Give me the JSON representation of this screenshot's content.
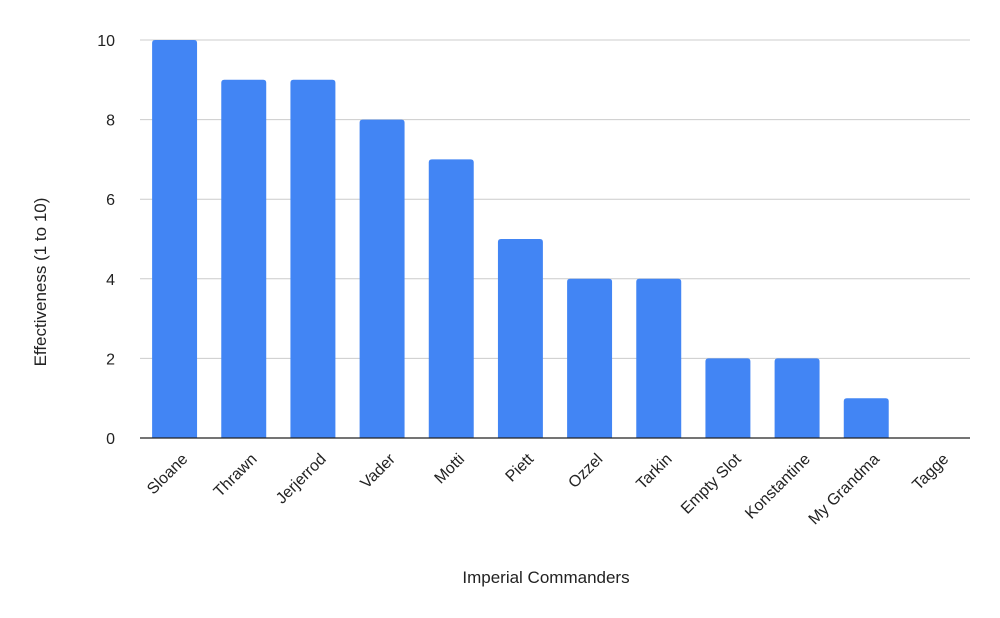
{
  "chart_data": {
    "type": "bar",
    "categories": [
      "Sloane",
      "Thrawn",
      "Jerjerrod",
      "Vader",
      "Motti",
      "Piett",
      "Ozzel",
      "Tarkin",
      "Empty Slot",
      "Konstantine",
      "My Grandma",
      "Tagge"
    ],
    "values": [
      10,
      9,
      9,
      8,
      7,
      5,
      4,
      4,
      2,
      2,
      1,
      0
    ],
    "title": "",
    "xlabel": "Imperial Commanders",
    "ylabel": "Effectiveness (1 to 10)",
    "ylim": [
      0,
      10
    ],
    "yticks": [
      0,
      2,
      4,
      6,
      8,
      10
    ],
    "grid": true,
    "bar_color": "#4285f4"
  }
}
